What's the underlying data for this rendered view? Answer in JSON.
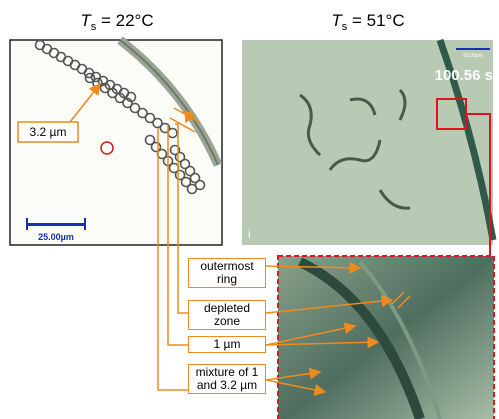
{
  "panels": [
    {
      "title": {
        "symbol": "T",
        "subscript": "s",
        "rest": " = 22°C"
      },
      "annotation": "3.2 µm",
      "scale_bar": "25.00µm"
    },
    {
      "title": {
        "symbol": "T",
        "subscript": "s",
        "rest": " = 51°C"
      },
      "scale_bar": "50.00µm",
      "time": "100.56 s",
      "label": "i"
    }
  ],
  "callouts": [
    "outermost ring",
    "depleted zone",
    "1 µm",
    "mixture of 1 and 3.2 µm"
  ]
}
